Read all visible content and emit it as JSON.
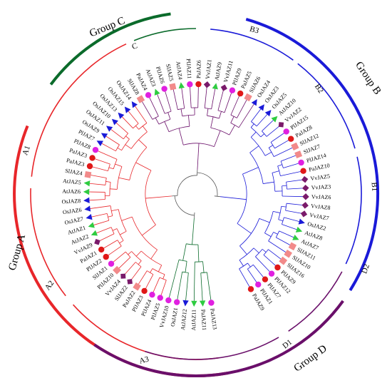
{
  "groups": [
    {
      "label": "Group A",
      "color": "#e8262a"
    },
    {
      "label": "Group B",
      "color": "#1a1ad8"
    },
    {
      "label": "Group C",
      "color": "#0b6b2b"
    },
    {
      "label": "Group D",
      "color": "#6a0f6a"
    }
  ],
  "subgroups": [
    "A1",
    "A2",
    "A3",
    "B1",
    "B2",
    "B3",
    "C",
    "D1",
    "D2"
  ],
  "colors": {
    "circle_magenta": "#e020e0",
    "circle_red": "#e01818",
    "square_salmon": "#f28a8a",
    "diamond_purple": "#7a1a6a",
    "triangle_blue": "#1a1ad8",
    "triangle_green": "#2ecc40"
  },
  "leaves": [
    {
      "label": "PaJAZ13",
      "marker": "circle_magenta"
    },
    {
      "label": "PaJAZ11",
      "marker": "triangle_green"
    },
    {
      "label": "AtJAZ11",
      "marker": "triangle_green"
    },
    {
      "label": "AtJAZ12",
      "marker": "triangle_blue"
    },
    {
      "label": "OsJAZ1",
      "marker": "circle_magenta"
    },
    {
      "label": "VvJAZ10",
      "marker": "circle_magenta"
    },
    {
      "label": "PlJAZ5",
      "marker": "circle_magenta"
    },
    {
      "label": "PlJAZ4",
      "marker": "circle_magenta"
    },
    {
      "label": "PlJAZ3",
      "marker": "circle_red"
    },
    {
      "label": "PaJAZ2",
      "marker": "square_salmon"
    },
    {
      "label": "SlJAZ2",
      "marker": "diamond_purple"
    },
    {
      "label": "VvJAZ4",
      "marker": "diamond_purple"
    },
    {
      "label": "PlJAZ10",
      "marker": "square_salmon"
    },
    {
      "label": "SlJAZ1",
      "marker": "circle_magenta"
    },
    {
      "label": "PlJAZ2",
      "marker": "circle_red"
    },
    {
      "label": "PaJAZ1",
      "marker": "circle_red"
    },
    {
      "label": "VvJAZ9",
      "marker": "diamond_purple"
    },
    {
      "label": "AtJAZ2",
      "marker": "triangle_green"
    },
    {
      "label": "AtJAZ1",
      "marker": "triangle_green"
    },
    {
      "label": "OsJAZ7",
      "marker": "triangle_blue"
    },
    {
      "label": "OsJAZ6",
      "marker": "triangle_blue"
    },
    {
      "label": "OsJAZ8",
      "marker": "triangle_blue"
    },
    {
      "label": "AtJAZ6",
      "marker": "triangle_green"
    },
    {
      "label": "AtJAZ5",
      "marker": "triangle_green"
    },
    {
      "label": "SlJAZ4",
      "marker": "square_salmon"
    },
    {
      "label": "PaJAZ3",
      "marker": "circle_red"
    },
    {
      "label": "PaJAZ3",
      "marker": "circle_red"
    },
    {
      "label": "PlJAZ8",
      "marker": "circle_magenta"
    },
    {
      "label": "PlJAZ7",
      "marker": "triangle_blue"
    },
    {
      "label": "OsJAZ9",
      "marker": "triangle_blue"
    },
    {
      "label": "OsJAZ11",
      "marker": "triangle_blue"
    },
    {
      "label": "OsJAZ10",
      "marker": "triangle_blue"
    },
    {
      "label": "OsJAZ13",
      "marker": "triangle_blue"
    },
    {
      "label": "OsJAZ15",
      "marker": "triangle_blue"
    },
    {
      "label": "OsJAZ14",
      "marker": "triangle_blue"
    },
    {
      "label": "SlJAZ8",
      "marker": "square_salmon"
    },
    {
      "label": "PaJAZ4",
      "marker": "circle_magenta"
    },
    {
      "label": "AtJAZ3",
      "marker": "triangle_green"
    },
    {
      "label": "PlJAZ6",
      "marker": "circle_magenta"
    },
    {
      "label": "SlJAZ5",
      "marker": "square_salmon"
    },
    {
      "label": "AtJAZ4",
      "marker": "triangle_green"
    },
    {
      "label": "PlJAZ11",
      "marker": "circle_magenta"
    },
    {
      "label": "PaJAZ6",
      "marker": "circle_red"
    },
    {
      "label": "VvJAZ1",
      "marker": "diamond_purple"
    },
    {
      "label": "AtJAZ9",
      "marker": "triangle_green"
    },
    {
      "label": "VvJAZ11",
      "marker": "diamond_purple"
    },
    {
      "label": "PlJAZ9",
      "marker": "circle_magenta"
    },
    {
      "label": "PaJAZ5",
      "marker": "circle_red"
    },
    {
      "label": "SlJAZ6",
      "marker": "square_salmon"
    },
    {
      "label": "OsJAZ4",
      "marker": "triangle_blue"
    },
    {
      "label": "OsJAZ3",
      "marker": "triangle_blue"
    },
    {
      "label": "OsJAZ5",
      "marker": "triangle_blue"
    },
    {
      "label": "AtJAZ10",
      "marker": "triangle_green"
    },
    {
      "label": "VvJAZ2",
      "marker": "diamond_purple"
    },
    {
      "label": "PlJAZ15",
      "marker": "circle_magenta"
    },
    {
      "label": "PaJAZ8",
      "marker": "circle_red"
    },
    {
      "label": "SlJAZ12",
      "marker": "square_salmon"
    },
    {
      "label": "SlJAZ7",
      "marker": "square_salmon"
    },
    {
      "label": "PlJAZ14",
      "marker": "circle_magenta"
    },
    {
      "label": "PaJAZ10",
      "marker": "circle_red"
    },
    {
      "label": "VvJAZ5",
      "marker": "diamond_purple"
    },
    {
      "label": "VvJAZ3",
      "marker": "diamond_purple"
    },
    {
      "label": "VvJAZ6",
      "marker": "diamond_purple"
    },
    {
      "label": "VvJAZ8",
      "marker": "diamond_purple"
    },
    {
      "label": "VvJAZ7",
      "marker": "diamond_purple"
    },
    {
      "label": "OsJAZ2",
      "marker": "triangle_blue"
    },
    {
      "label": "AtJAZ8",
      "marker": "triangle_green"
    },
    {
      "label": "AtJAZ7",
      "marker": "triangle_green"
    },
    {
      "label": "SlJAZ11",
      "marker": "square_salmon"
    },
    {
      "label": "SlJAZ10",
      "marker": "square_salmon"
    },
    {
      "label": "SlJAZ16",
      "marker": "square_salmon"
    },
    {
      "label": "PlJAZ9",
      "marker": "circle_red"
    },
    {
      "label": "PlJAZ12",
      "marker": "circle_magenta"
    },
    {
      "label": "PlJAZ7",
      "marker": "circle_red"
    },
    {
      "label": "PlJAZ1",
      "marker": "circle_magenta"
    },
    {
      "label": "PaJAZ9",
      "marker": "circle_red"
    }
  ]
}
